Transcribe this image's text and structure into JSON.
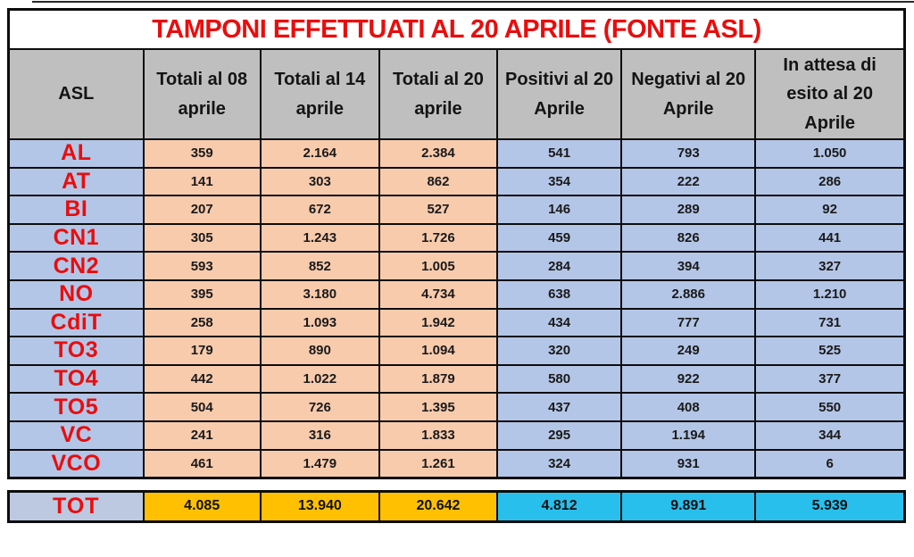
{
  "title": "TAMPONI EFFETTUATI AL 20 APRILE (FONTE ASL)",
  "colors": {
    "title_red": "#e90d0d",
    "header_gray": "#bfbfbf",
    "asl_periwinkle": "#b4c6e7",
    "totals_peach": "#f8cbad",
    "results_blue": "#b4c6e7",
    "tot_gold": "#fec001",
    "tot_cyan": "#29bfec",
    "border_black": "#0d0d0d"
  },
  "table": {
    "headers": [
      "ASL",
      "Totali al 08 aprile",
      "Totali al 14 aprile",
      "Totali al 20 aprile",
      "Positivi al 20 Aprile",
      "Negativi al 20 Aprile",
      "In attesa  di esito al 20 Aprile"
    ],
    "rows": [
      {
        "asl": "AL",
        "values": [
          "359",
          "2.164",
          "2.384",
          "541",
          "793",
          "1.050"
        ]
      },
      {
        "asl": "AT",
        "values": [
          "141",
          "303",
          "862",
          "354",
          "222",
          "286"
        ]
      },
      {
        "asl": "BI",
        "values": [
          "207",
          "672",
          "527",
          "146",
          "289",
          "92"
        ]
      },
      {
        "asl": "CN1",
        "values": [
          "305",
          "1.243",
          "1.726",
          "459",
          "826",
          "441"
        ]
      },
      {
        "asl": "CN2",
        "values": [
          "593",
          "852",
          "1.005",
          "284",
          "394",
          "327"
        ]
      },
      {
        "asl": "NO",
        "values": [
          "395",
          "3.180",
          "4.734",
          "638",
          "2.886",
          "1.210"
        ]
      },
      {
        "asl": "CdiT",
        "values": [
          "258",
          "1.093",
          "1.942",
          "434",
          "777",
          "731"
        ]
      },
      {
        "asl": "TO3",
        "values": [
          "179",
          "890",
          "1.094",
          "320",
          "249",
          "525"
        ]
      },
      {
        "asl": "TO4",
        "values": [
          "442",
          "1.022",
          "1.879",
          "580",
          "922",
          "377"
        ]
      },
      {
        "asl": "TO5",
        "values": [
          "504",
          "726",
          "1.395",
          "437",
          "408",
          "550"
        ]
      },
      {
        "asl": "VC",
        "values": [
          "241",
          "316",
          "1.833",
          "295",
          "1.194",
          "344"
        ]
      },
      {
        "asl": "VCO",
        "values": [
          "461",
          "1.479",
          "1.261",
          "324",
          "931",
          "6"
        ]
      }
    ],
    "total_row": {
      "label": "TOT",
      "values": [
        "4.085",
        "13.940",
        "20.642",
        "4.812",
        "9.891",
        "5.939"
      ]
    }
  },
  "chart_data": {
    "type": "table",
    "title": "TAMPONI EFFETTUATI AL 20 APRILE (FONTE ASL)",
    "columns": [
      "ASL",
      "Totali al 08 aprile",
      "Totali al 14 aprile",
      "Totali al 20 aprile",
      "Positivi al 20 Aprile",
      "Negativi al 20 Aprile",
      "In attesa di esito al 20 Aprile"
    ],
    "rows": [
      [
        "AL",
        359,
        2164,
        2384,
        541,
        793,
        1050
      ],
      [
        "AT",
        141,
        303,
        862,
        354,
        222,
        286
      ],
      [
        "BI",
        207,
        672,
        527,
        146,
        289,
        92
      ],
      [
        "CN1",
        305,
        1243,
        1726,
        459,
        826,
        441
      ],
      [
        "CN2",
        593,
        852,
        1005,
        284,
        394,
        327
      ],
      [
        "NO",
        395,
        3180,
        4734,
        638,
        2886,
        1210
      ],
      [
        "CdiT",
        258,
        1093,
        1942,
        434,
        777,
        731
      ],
      [
        "TO3",
        179,
        890,
        1094,
        320,
        249,
        525
      ],
      [
        "TO4",
        442,
        1022,
        1879,
        580,
        922,
        377
      ],
      [
        "TO5",
        504,
        726,
        1395,
        437,
        408,
        550
      ],
      [
        "VC",
        241,
        316,
        1833,
        295,
        1194,
        344
      ],
      [
        "VCO",
        461,
        1479,
        1261,
        324,
        931,
        6
      ]
    ],
    "totals": [
      "TOT",
      4085,
      13940,
      20642,
      4812,
      9891,
      5939
    ],
    "number_format": "it-IT thousands separator '.'"
  }
}
